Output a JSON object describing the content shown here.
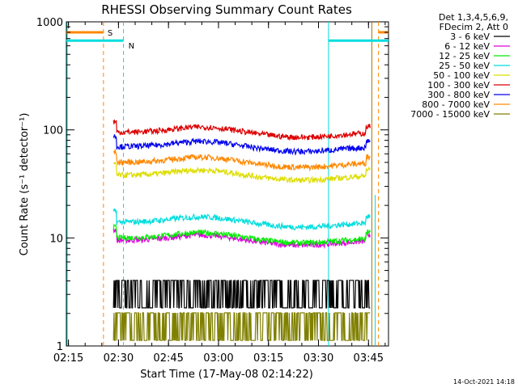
{
  "chart_data": {
    "type": "line",
    "title": "RHESSI Observing Summary Count Rates",
    "xlabel": "Start Time (17-May-08 02:14:22)",
    "ylabel": "Count Rate (s⁻¹ detector⁻¹)",
    "x_ticks": [
      "02:15",
      "02:30",
      "02:45",
      "03:00",
      "03:15",
      "03:30",
      "03:45"
    ],
    "y_ticks": [
      "1",
      "10",
      "100",
      "1000"
    ],
    "y_scale": "log",
    "ylim": [
      1,
      1000
    ],
    "xlim": [
      "02:14:22",
      "03:51:00"
    ],
    "legend_header": [
      "Det 1,3,4,5,6,9,",
      "FDecim 2, Att 0"
    ],
    "legend_placement": "right",
    "series": [
      {
        "name": "3 - 6 keV",
        "color": "#000000",
        "level": 3.0
      },
      {
        "name": "6 - 12 keV",
        "color": "#dd00dd",
        "level": 9.5
      },
      {
        "name": "12 - 25 keV",
        "color": "#00ee00",
        "level": 10.0
      },
      {
        "name": "25 - 50 keV",
        "color": "#00dddd",
        "level": 14.0
      },
      {
        "name": "50 - 100 keV",
        "color": "#dddd00",
        "level": 38.0
      },
      {
        "name": "100 - 300 keV",
        "color": "#dd0000",
        "level": 95.0
      },
      {
        "name": "300 - 800 keV",
        "color": "#0000ee",
        "level": 70.0
      },
      {
        "name": "800 - 7000 keV",
        "color": "#ff8800",
        "level": 50.0
      },
      {
        "name": "7000 - 15000 keV",
        "color": "#808000",
        "level": 1.5
      }
    ],
    "annotations": [
      {
        "text": "S",
        "color": "#ff8800"
      },
      {
        "text": "N",
        "color": "#00dddd"
      }
    ],
    "timestamp": "14-Oct-2021 14:18"
  }
}
